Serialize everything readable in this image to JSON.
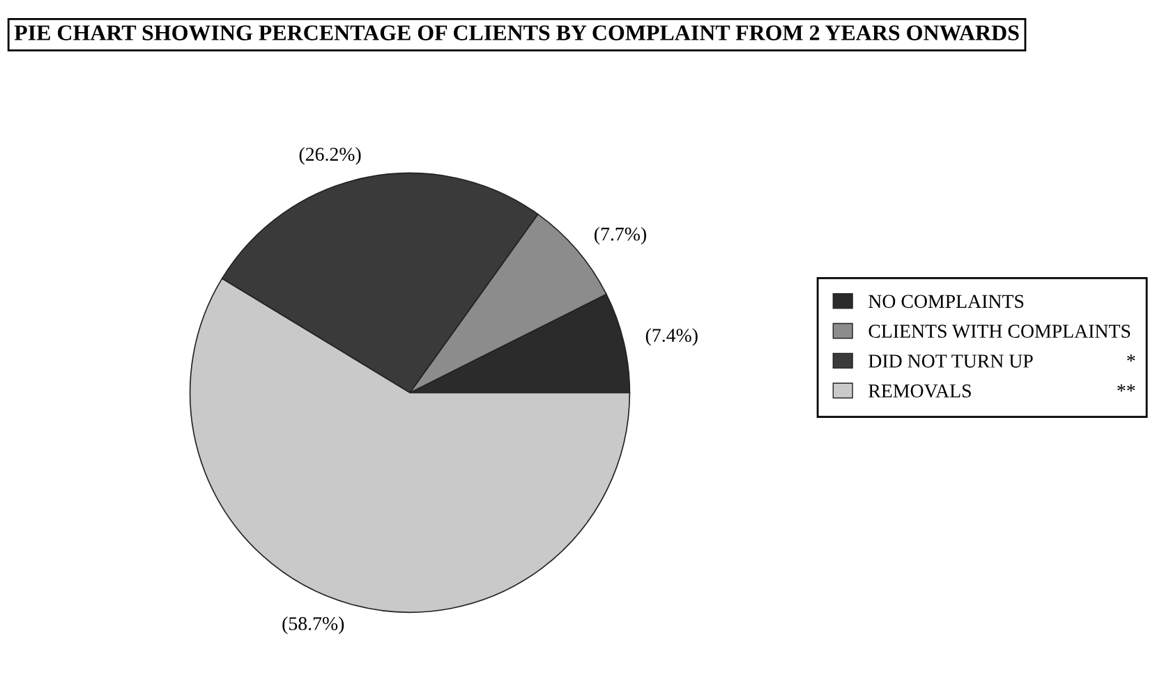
{
  "chart_data": {
    "type": "pie",
    "title": "PIE CHART SHOWING PERCENTAGE OF CLIENTS BY COMPLAINT FROM 2 YEARS ONWARDS",
    "categories": [
      "NO COMPLAINTS",
      "CLIENTS WITH COMPLAINTS",
      "DID NOT TURN UP",
      "REMOVALS"
    ],
    "values": [
      7.4,
      7.7,
      26.2,
      58.7
    ],
    "value_labels": [
      "(7.4%)",
      "(7.7%)",
      "(26.2%)",
      "(58.7%)"
    ],
    "colors": [
      "#2b2b2b",
      "#8c8c8c",
      "#3a3a3a",
      "#c9c9c9"
    ],
    "legend": "right",
    "annotations": [
      {
        "text": "*",
        "x": "DID NOT TURN UP"
      },
      {
        "text": "**",
        "x": "REMOVALS"
      }
    ]
  }
}
